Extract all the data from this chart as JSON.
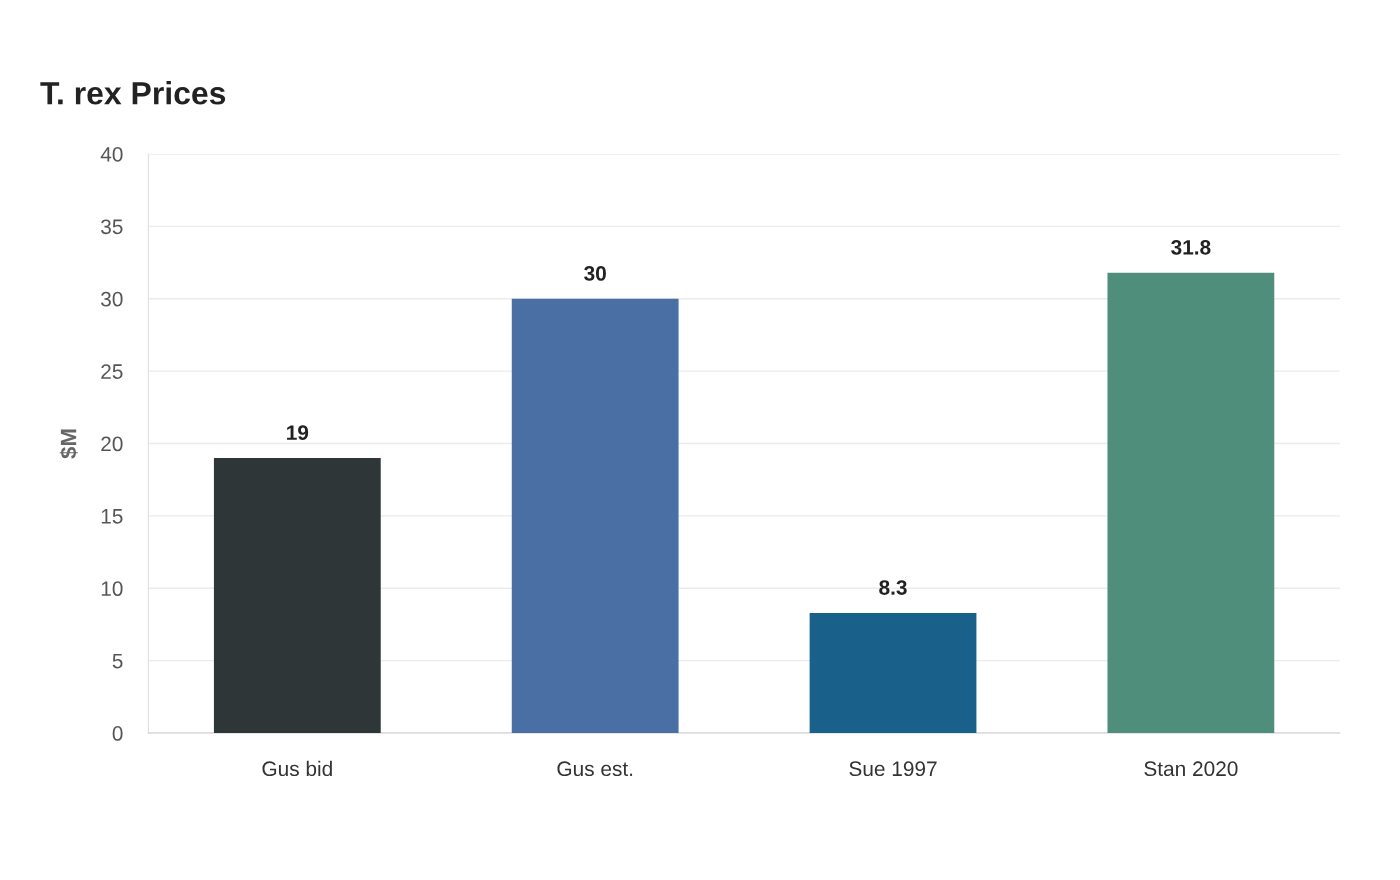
{
  "chart_data": {
    "type": "bar",
    "title": "T. rex Prices",
    "ylabel": "$M",
    "categories": [
      "Gus bid",
      "Gus est.",
      "Sue 1997",
      "Stan 2020"
    ],
    "values": [
      19,
      30,
      8.3,
      31.8
    ],
    "colors": [
      "#2e3638",
      "#4a6fa5",
      "#19618a",
      "#4f8e7b"
    ],
    "ylim": [
      0,
      40
    ],
    "yticks": [
      0,
      5,
      10,
      15,
      20,
      25,
      30,
      35,
      40
    ],
    "grid": "y",
    "data_labels": true
  }
}
